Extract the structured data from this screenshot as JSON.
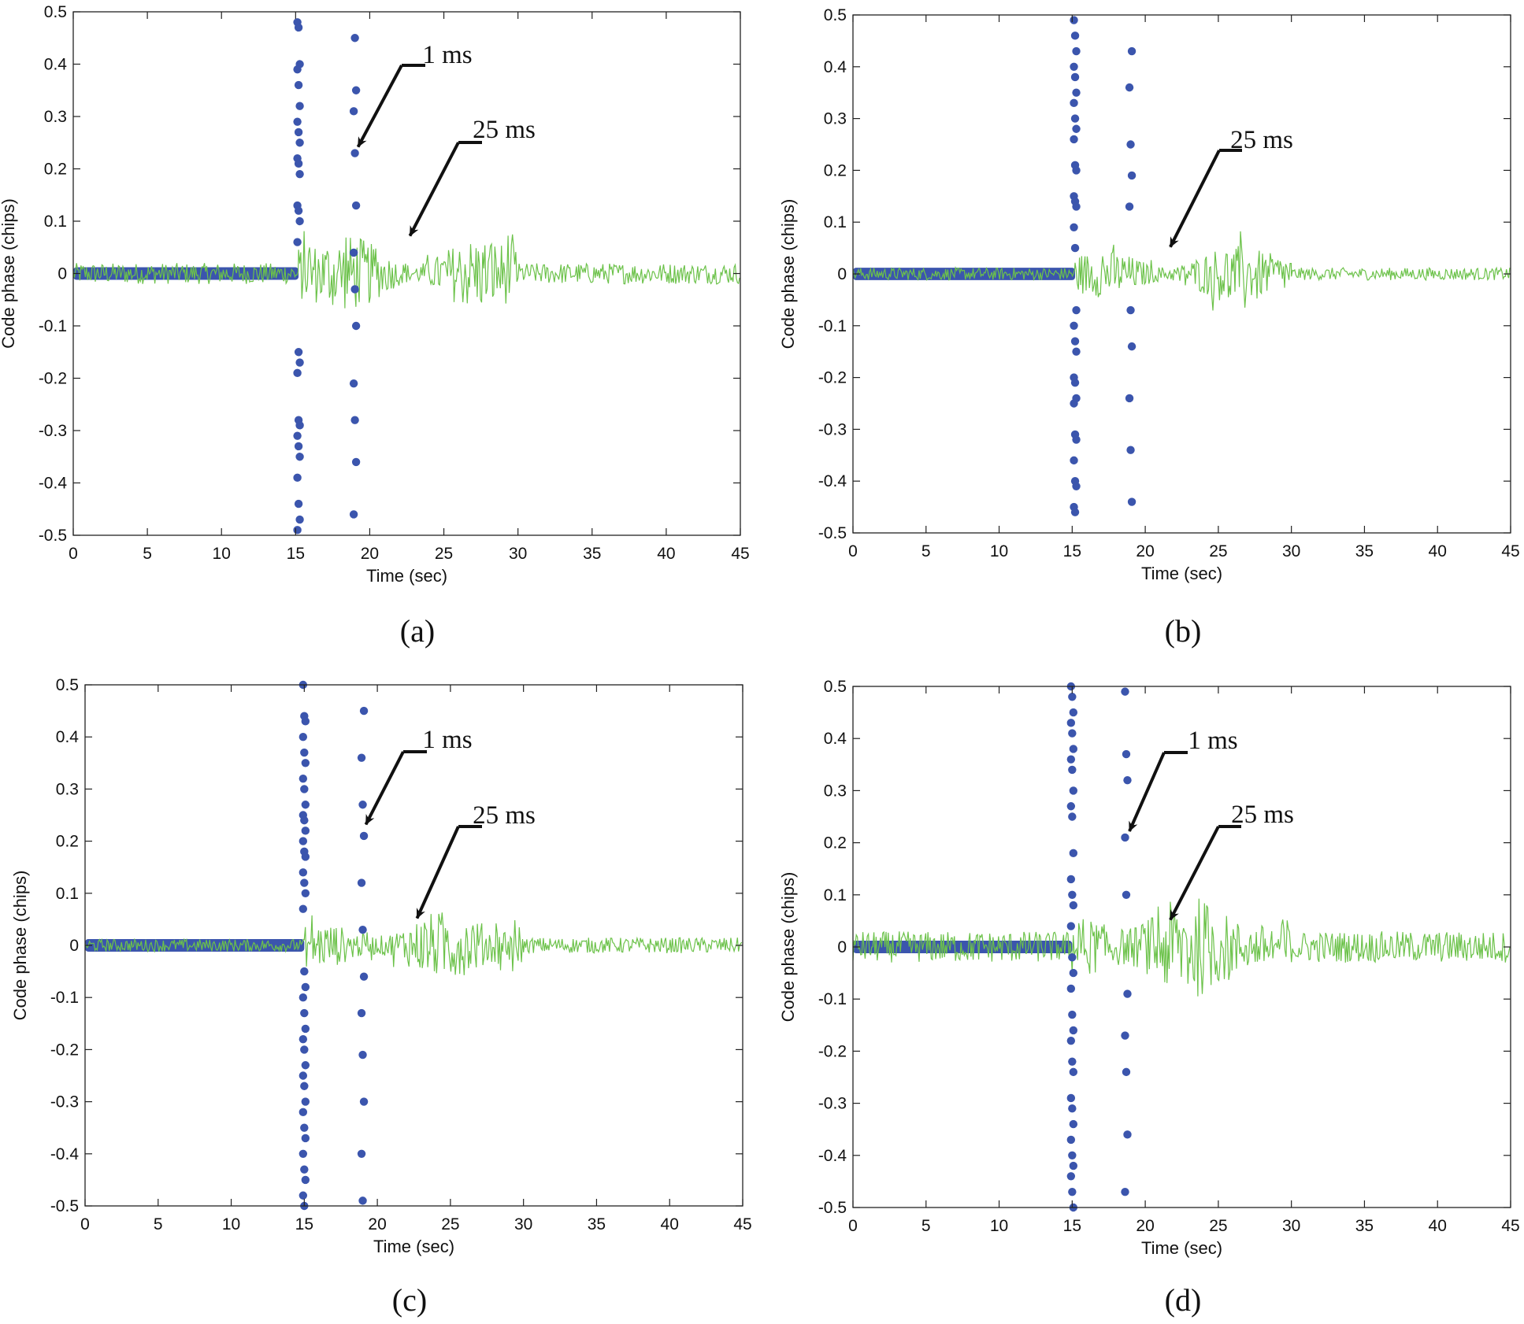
{
  "figure": {
    "colors": {
      "scatter": "#3b55ad",
      "line": "#6cc24a",
      "axis": "#222222",
      "text": "#111111"
    }
  },
  "chart_data": [
    {
      "type": "line",
      "panel": "(a)",
      "xlabel": "Time (sec)",
      "ylabel": "Code phase (chips)",
      "xlim": [
        0,
        45
      ],
      "ylim": [
        -0.5,
        0.5
      ],
      "xticks": [
        "0",
        "5",
        "10",
        "15",
        "20",
        "25",
        "30",
        "35",
        "40",
        "45"
      ],
      "yticks": [
        "0.5",
        "0.4",
        "0.3",
        "0.2",
        "0.1",
        "0",
        "-0.1",
        "-0.2",
        "-0.3",
        "-0.4",
        "-0.5"
      ],
      "series": [
        {
          "name": "1 ms",
          "kind": "scatter",
          "color": "#3b55ad",
          "baseline": {
            "x_range": [
              0,
              15.2
            ],
            "amplitude": 0.012
          },
          "points": [
            [
              15.2,
              0.48
            ],
            [
              15.2,
              0.47
            ],
            [
              15.2,
              0.4
            ],
            [
              15.2,
              0.39
            ],
            [
              15.2,
              0.36
            ],
            [
              15.2,
              0.32
            ],
            [
              15.2,
              0.29
            ],
            [
              15.2,
              0.27
            ],
            [
              15.2,
              0.25
            ],
            [
              15.2,
              0.22
            ],
            [
              15.2,
              0.21
            ],
            [
              15.2,
              0.19
            ],
            [
              15.2,
              0.13
            ],
            [
              15.2,
              0.12
            ],
            [
              15.2,
              0.1
            ],
            [
              15.2,
              0.06
            ],
            [
              15.2,
              -0.15
            ],
            [
              15.2,
              -0.17
            ],
            [
              15.2,
              -0.19
            ],
            [
              15.2,
              -0.28
            ],
            [
              15.2,
              -0.29
            ],
            [
              15.2,
              -0.31
            ],
            [
              15.2,
              -0.33
            ],
            [
              15.2,
              -0.35
            ],
            [
              15.2,
              -0.39
            ],
            [
              15.2,
              -0.44
            ],
            [
              15.2,
              -0.47
            ],
            [
              15.2,
              -0.49
            ],
            [
              19.0,
              0.45
            ],
            [
              19.0,
              0.35
            ],
            [
              19.0,
              0.31
            ],
            [
              19.0,
              0.23
            ],
            [
              19.0,
              0.13
            ],
            [
              19.0,
              0.04
            ],
            [
              19.0,
              -0.03
            ],
            [
              19.0,
              -0.1
            ],
            [
              19.0,
              -0.21
            ],
            [
              19.0,
              -0.28
            ],
            [
              19.0,
              -0.36
            ],
            [
              19.0,
              -0.46
            ]
          ]
        },
        {
          "name": "25 ms",
          "kind": "line",
          "color": "#6cc24a",
          "segments": [
            {
              "x_range": [
                0,
                15.2
              ],
              "amplitude": 0.02
            },
            {
              "x_range": [
                15.2,
                30
              ],
              "amplitude": 0.07
            },
            {
              "x_range": [
                30,
                45
              ],
              "amplitude": 0.02
            }
          ]
        }
      ],
      "annotations": [
        {
          "text": "1 ms",
          "x": 19.0,
          "y": 0.23
        },
        {
          "text": "25 ms",
          "x": 22.5,
          "y": 0.06
        }
      ]
    },
    {
      "type": "line",
      "panel": "(b)",
      "xlabel": "Time (sec)",
      "ylabel": "Code phase (chips)",
      "xlim": [
        0,
        45
      ],
      "ylim": [
        -0.5,
        0.5
      ],
      "xticks": [
        "0",
        "5",
        "10",
        "15",
        "20",
        "25",
        "30",
        "35",
        "40",
        "45"
      ],
      "yticks": [
        "0.5",
        "0.4",
        "0.3",
        "0.2",
        "0.1",
        "0",
        "-0.1",
        "-0.2",
        "-0.3",
        "-0.4",
        "-0.5"
      ],
      "series": [
        {
          "name": "1 ms",
          "kind": "scatter",
          "color": "#3b55ad",
          "baseline": {
            "x_range": [
              0,
              15.2
            ],
            "amplitude": 0.012
          },
          "points": [
            [
              15.2,
              0.49
            ],
            [
              15.2,
              0.46
            ],
            [
              15.2,
              0.43
            ],
            [
              15.2,
              0.4
            ],
            [
              15.2,
              0.38
            ],
            [
              15.2,
              0.35
            ],
            [
              15.2,
              0.33
            ],
            [
              15.2,
              0.3
            ],
            [
              15.2,
              0.28
            ],
            [
              15.2,
              0.26
            ],
            [
              15.2,
              0.21
            ],
            [
              15.2,
              0.2
            ],
            [
              15.2,
              0.15
            ],
            [
              15.2,
              0.14
            ],
            [
              15.2,
              0.13
            ],
            [
              15.2,
              0.09
            ],
            [
              15.2,
              0.05
            ],
            [
              15.2,
              -0.07
            ],
            [
              15.2,
              -0.1
            ],
            [
              15.2,
              -0.13
            ],
            [
              15.2,
              -0.15
            ],
            [
              15.2,
              -0.2
            ],
            [
              15.2,
              -0.21
            ],
            [
              15.2,
              -0.24
            ],
            [
              15.2,
              -0.25
            ],
            [
              15.2,
              -0.31
            ],
            [
              15.2,
              -0.32
            ],
            [
              15.2,
              -0.36
            ],
            [
              15.2,
              -0.4
            ],
            [
              15.2,
              -0.41
            ],
            [
              15.2,
              -0.45
            ],
            [
              15.2,
              -0.46
            ],
            [
              19.0,
              0.43
            ],
            [
              19.0,
              0.36
            ],
            [
              19.0,
              0.25
            ],
            [
              19.0,
              0.19
            ],
            [
              19.0,
              0.13
            ],
            [
              19.0,
              -0.07
            ],
            [
              19.0,
              -0.14
            ],
            [
              19.0,
              -0.24
            ],
            [
              19.0,
              -0.34
            ],
            [
              19.0,
              -0.44
            ]
          ]
        },
        {
          "name": "25 ms",
          "kind": "line",
          "color": "#6cc24a",
          "segments": [
            {
              "x_range": [
                0,
                15.2
              ],
              "amplitude": 0.012
            },
            {
              "x_range": [
                15.2,
                30
              ],
              "amplitude": 0.05
            },
            {
              "x_range": [
                30,
                45
              ],
              "amplitude": 0.012
            }
          ]
        }
      ],
      "annotations": [
        {
          "text": "25 ms",
          "x": 21.5,
          "y": 0.04
        }
      ]
    },
    {
      "type": "line",
      "panel": "(c)",
      "xlabel": "Time (sec)",
      "ylabel": "Code phase (chips)",
      "xlim": [
        0,
        45
      ],
      "ylim": [
        -0.5,
        0.5
      ],
      "xticks": [
        "0",
        "5",
        "10",
        "15",
        "20",
        "25",
        "30",
        "35",
        "40",
        "45"
      ],
      "yticks": [
        "0.5",
        "0.4",
        "0.3",
        "0.2",
        "0.1",
        "0",
        "-0.1",
        "-0.2",
        "-0.3",
        "-0.4",
        "-0.5"
      ],
      "series": [
        {
          "name": "1 ms",
          "kind": "scatter",
          "color": "#3b55ad",
          "baseline": {
            "x_range": [
              0,
              15.0
            ],
            "amplitude": 0.012
          },
          "points": [
            [
              15.0,
              0.5
            ],
            [
              15.0,
              0.44
            ],
            [
              15.0,
              0.43
            ],
            [
              15.0,
              0.4
            ],
            [
              15.0,
              0.37
            ],
            [
              15.0,
              0.35
            ],
            [
              15.0,
              0.32
            ],
            [
              15.0,
              0.3
            ],
            [
              15.0,
              0.27
            ],
            [
              15.0,
              0.25
            ],
            [
              15.0,
              0.24
            ],
            [
              15.0,
              0.22
            ],
            [
              15.0,
              0.2
            ],
            [
              15.0,
              0.18
            ],
            [
              15.0,
              0.17
            ],
            [
              15.0,
              0.14
            ],
            [
              15.0,
              0.12
            ],
            [
              15.0,
              0.1
            ],
            [
              15.0,
              0.07
            ],
            [
              15.0,
              -0.05
            ],
            [
              15.0,
              -0.08
            ],
            [
              15.0,
              -0.1
            ],
            [
              15.0,
              -0.13
            ],
            [
              15.0,
              -0.16
            ],
            [
              15.0,
              -0.18
            ],
            [
              15.0,
              -0.2
            ],
            [
              15.0,
              -0.23
            ],
            [
              15.0,
              -0.25
            ],
            [
              15.0,
              -0.27
            ],
            [
              15.0,
              -0.3
            ],
            [
              15.0,
              -0.32
            ],
            [
              15.0,
              -0.35
            ],
            [
              15.0,
              -0.37
            ],
            [
              15.0,
              -0.4
            ],
            [
              15.0,
              -0.43
            ],
            [
              15.0,
              -0.45
            ],
            [
              15.0,
              -0.48
            ],
            [
              15.0,
              -0.5
            ],
            [
              19.0,
              0.45
            ],
            [
              19.0,
              0.36
            ],
            [
              19.0,
              0.27
            ],
            [
              19.0,
              0.21
            ],
            [
              19.0,
              0.12
            ],
            [
              19.0,
              0.03
            ],
            [
              19.0,
              -0.06
            ],
            [
              19.0,
              -0.13
            ],
            [
              19.0,
              -0.21
            ],
            [
              19.0,
              -0.3
            ],
            [
              19.0,
              -0.4
            ],
            [
              19.0,
              -0.49
            ]
          ]
        },
        {
          "name": "25 ms",
          "kind": "line",
          "color": "#6cc24a",
          "segments": [
            {
              "x_range": [
                0,
                15.0
              ],
              "amplitude": 0.012
            },
            {
              "x_range": [
                15.0,
                30
              ],
              "amplitude": 0.055
            },
            {
              "x_range": [
                30,
                45
              ],
              "amplitude": 0.015
            }
          ]
        }
      ],
      "annotations": [
        {
          "text": "1 ms",
          "x": 19.0,
          "y": 0.22
        },
        {
          "text": "25 ms",
          "x": 22.5,
          "y": 0.04
        }
      ]
    },
    {
      "type": "line",
      "panel": "(d)",
      "xlabel": "Time (sec)",
      "ylabel": "Code phase (chips)",
      "xlim": [
        0,
        45
      ],
      "ylim": [
        -0.5,
        0.5
      ],
      "xticks": [
        "0",
        "5",
        "10",
        "15",
        "20",
        "25",
        "30",
        "35",
        "40",
        "45"
      ],
      "yticks": [
        "0.5",
        "0.4",
        "0.3",
        "0.2",
        "0.1",
        "0",
        "-0.1",
        "-0.2",
        "-0.3",
        "-0.4",
        "-0.5"
      ],
      "series": [
        {
          "name": "1 ms",
          "kind": "scatter",
          "color": "#3b55ad",
          "baseline": {
            "x_range": [
              0,
              15.0
            ],
            "amplitude": 0.012
          },
          "points": [
            [
              15.0,
              0.5
            ],
            [
              15.0,
              0.48
            ],
            [
              15.0,
              0.45
            ],
            [
              15.0,
              0.43
            ],
            [
              15.0,
              0.41
            ],
            [
              15.0,
              0.38
            ],
            [
              15.0,
              0.36
            ],
            [
              15.0,
              0.34
            ],
            [
              15.0,
              0.3
            ],
            [
              15.0,
              0.27
            ],
            [
              15.0,
              0.25
            ],
            [
              15.0,
              0.18
            ],
            [
              15.0,
              0.13
            ],
            [
              15.0,
              0.1
            ],
            [
              15.0,
              0.08
            ],
            [
              15.0,
              0.04
            ],
            [
              15.0,
              -0.02
            ],
            [
              15.0,
              -0.05
            ],
            [
              15.0,
              -0.08
            ],
            [
              15.0,
              -0.13
            ],
            [
              15.0,
              -0.16
            ],
            [
              15.0,
              -0.18
            ],
            [
              15.0,
              -0.22
            ],
            [
              15.0,
              -0.24
            ],
            [
              15.0,
              -0.29
            ],
            [
              15.0,
              -0.31
            ],
            [
              15.0,
              -0.34
            ],
            [
              15.0,
              -0.37
            ],
            [
              15.0,
              -0.4
            ],
            [
              15.0,
              -0.42
            ],
            [
              15.0,
              -0.44
            ],
            [
              15.0,
              -0.47
            ],
            [
              15.0,
              -0.5
            ],
            [
              18.7,
              0.49
            ],
            [
              18.7,
              0.37
            ],
            [
              18.7,
              0.32
            ],
            [
              18.7,
              0.21
            ],
            [
              18.7,
              0.1
            ],
            [
              18.7,
              -0.09
            ],
            [
              18.7,
              -0.17
            ],
            [
              18.7,
              -0.24
            ],
            [
              18.7,
              -0.36
            ],
            [
              18.7,
              -0.47
            ]
          ]
        },
        {
          "name": "25 ms",
          "kind": "line",
          "color": "#6cc24a",
          "segments": [
            {
              "x_range": [
                0,
                15.0
              ],
              "amplitude": 0.03
            },
            {
              "x_range": [
                15.0,
                30
              ],
              "amplitude": 0.08
            },
            {
              "x_range": [
                30,
                45
              ],
              "amplitude": 0.03
            }
          ]
        }
      ],
      "annotations": [
        {
          "text": "1 ms",
          "x": 18.7,
          "y": 0.21
        },
        {
          "text": "25 ms",
          "x": 21.5,
          "y": 0.04
        }
      ]
    }
  ]
}
